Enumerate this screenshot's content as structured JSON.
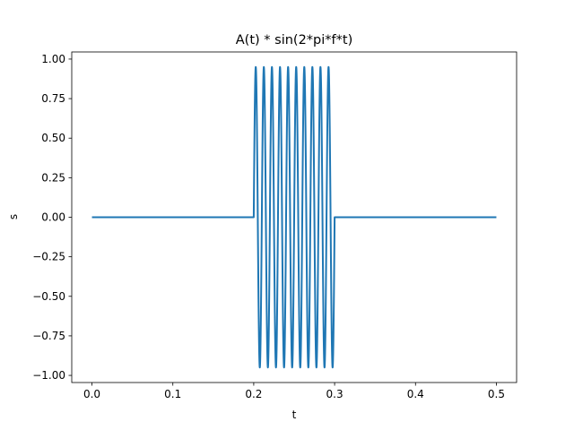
{
  "chart_data": {
    "type": "line",
    "title": "A(t) * sin(2*pi*f*t)",
    "xlabel": "t",
    "ylabel": "s",
    "xlim": [
      -0.025,
      0.525
    ],
    "ylim": [
      -1.045,
      1.045
    ],
    "xticks": [
      0.0,
      0.1,
      0.2,
      0.3,
      0.4,
      0.5
    ],
    "xtick_labels": [
      "0.0",
      "0.1",
      "0.2",
      "0.3",
      "0.4",
      "0.5"
    ],
    "yticks": [
      1.0,
      0.75,
      0.5,
      0.25,
      0.0,
      -0.25,
      -0.5,
      -0.75,
      -1.0
    ],
    "ytick_labels": [
      "1.00",
      "0.75",
      "0.50",
      "0.25",
      "0.00",
      "−0.25",
      "−0.50",
      "−0.75",
      "−1.00"
    ],
    "grid": false,
    "line_color": "#1f77b4",
    "series": [
      {
        "x_range": [
          0.0,
          0.5
        ],
        "burst": {
          "t_start": 0.2,
          "t_end": 0.3,
          "frequency": 100,
          "amplitude": 0.95
        },
        "baseline": 0.0
      }
    ]
  }
}
